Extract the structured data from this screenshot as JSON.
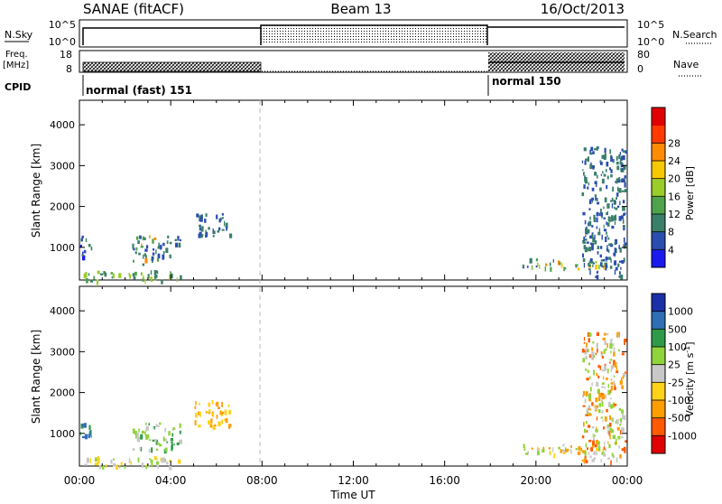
{
  "header": {
    "station": "SANAE (fitACF)",
    "beam": "Beam 13",
    "date": "16/Oct/2013"
  },
  "status_panel": {
    "nsky_label": "N.Sky",
    "nsky_ticks": [
      "10^5",
      "10^0"
    ],
    "nsearch_label": "N.Search",
    "nsearch_ticks": [
      "10^5",
      "10^0"
    ],
    "freq_label": "Freq.",
    "freq_unit": "[MHz]",
    "freq_ticks": [
      "18",
      "8"
    ],
    "nave_label": "Nave",
    "nave_ticks": [
      "80",
      "0"
    ],
    "cpid_label": "CPID",
    "cpid_segments": [
      {
        "name": "normal (fast) 151",
        "start": 0,
        "end": 8
      },
      {
        "name": "normal 150",
        "start": 18,
        "end": 24
      }
    ],
    "colors": {
      "line": "#000000"
    }
  },
  "chart_data": [
    {
      "type": "heatmap",
      "name": "power",
      "xlabel": "",
      "ylabel": "Slant Range [km]",
      "xlim": [
        0,
        24
      ],
      "ylim": [
        200,
        4600
      ],
      "yticks": [
        "1000",
        "2000",
        "3000",
        "4000"
      ],
      "colorbar": {
        "label": "Power [dB]",
        "ticks": [
          "4",
          "8",
          "12",
          "16",
          "20",
          "24",
          "28"
        ],
        "colors": [
          "#1a1aee",
          "#2a4db0",
          "#3a7f6a",
          "#4fa34c",
          "#9acd2a",
          "#f5c800",
          "#ff8c00",
          "#ff3b00",
          "#e00000"
        ]
      },
      "clusters": [
        {
          "t": [
            0.0,
            0.5
          ],
          "r": [
            800,
            1300
          ],
          "c": [
            0,
            1,
            2
          ]
        },
        {
          "t": [
            2.3,
            3.4
          ],
          "r": [
            600,
            1300
          ],
          "c": [
            1,
            2,
            3,
            6
          ]
        },
        {
          "t": [
            3.4,
            4.4
          ],
          "r": [
            800,
            1300
          ],
          "c": [
            1,
            2
          ]
        },
        {
          "t": [
            5.0,
            6.6
          ],
          "r": [
            1300,
            1850
          ],
          "c": [
            1,
            2
          ]
        },
        {
          "t": [
            0.0,
            4.4
          ],
          "r": [
            200,
            450
          ],
          "c": [
            2,
            3,
            4
          ]
        },
        {
          "t": [
            19.4,
            23.0
          ],
          "r": [
            500,
            750
          ],
          "c": [
            1,
            2,
            3,
            4,
            5,
            6
          ]
        },
        {
          "t": [
            22.0,
            23.9
          ],
          "r": [
            300,
            3500
          ],
          "c": [
            1,
            2
          ]
        }
      ]
    },
    {
      "type": "heatmap",
      "name": "velocity",
      "xlabel": "Time UT",
      "ylabel": "Slant Range [km]",
      "xlim": [
        0,
        24
      ],
      "ylim": [
        200,
        4600
      ],
      "xticks": [
        "00:00",
        "04:00",
        "08:00",
        "12:00",
        "16:00",
        "20:00",
        "00:00"
      ],
      "yticks": [
        "1000",
        "2000",
        "3000",
        "4000"
      ],
      "colorbar": {
        "label": "Velocity [m s^-1]",
        "ticks": [
          "1000",
          "500",
          "100",
          "25",
          "-25",
          "-100",
          "-500",
          "-1000"
        ],
        "colors": [
          "#1a2fa8",
          "#2e6fb5",
          "#2f9a4a",
          "#8fd43a",
          "#c8c8c8",
          "#ffd21a",
          "#ff9e00",
          "#ff5a00",
          "#e00000"
        ]
      },
      "clusters": [
        {
          "t": [
            0.0,
            0.5
          ],
          "r": [
            800,
            1300
          ],
          "c": [
            1,
            2
          ]
        },
        {
          "t": [
            2.3,
            4.4
          ],
          "r": [
            600,
            1300
          ],
          "c": [
            2,
            3,
            4
          ]
        },
        {
          "t": [
            5.0,
            6.6
          ],
          "r": [
            1200,
            1850
          ],
          "c": [
            5,
            6
          ]
        },
        {
          "t": [
            0.0,
            4.4
          ],
          "r": [
            200,
            450
          ],
          "c": [
            3,
            4,
            5
          ]
        },
        {
          "t": [
            19.4,
            23.0
          ],
          "r": [
            500,
            750
          ],
          "c": [
            3,
            4,
            5,
            6
          ]
        },
        {
          "t": [
            22.0,
            23.9
          ],
          "r": [
            300,
            3500
          ],
          "c": [
            3,
            4,
            6,
            7
          ]
        }
      ]
    }
  ]
}
